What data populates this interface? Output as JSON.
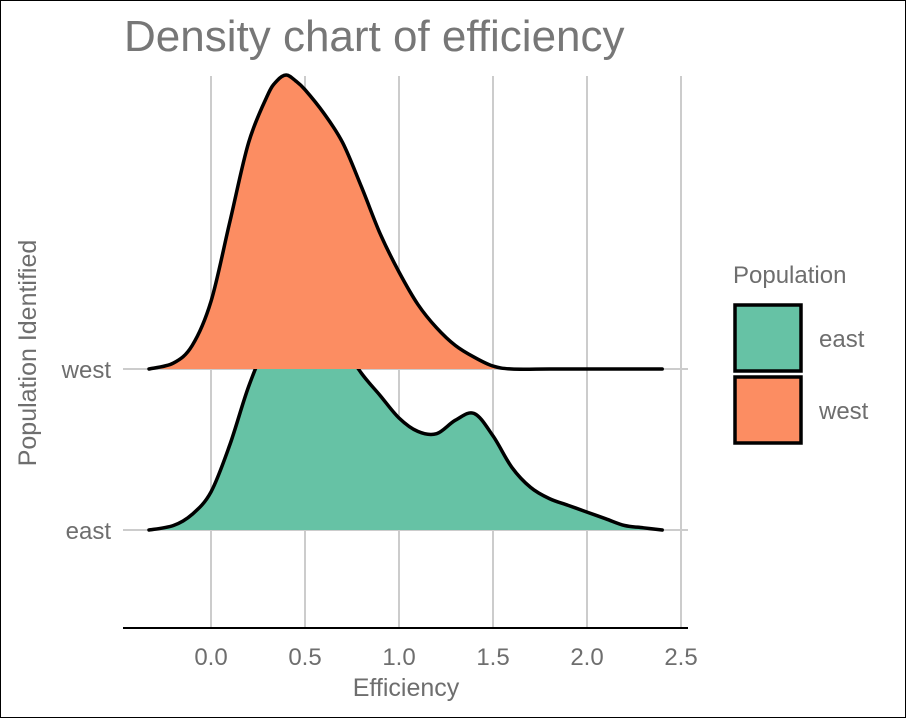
{
  "chart_data": {
    "type": "ridgeline-density",
    "title": "Density chart of efficiency",
    "xlabel": "Efficiency",
    "ylabel": "Population Identified",
    "xlim": [
      -0.35,
      2.45
    ],
    "x_ticks": [
      0.0,
      0.5,
      1.0,
      1.5,
      2.0,
      2.5
    ],
    "x_tick_labels": [
      "0.0",
      "0.5",
      "1.0",
      "1.5",
      "2.0",
      "2.5"
    ],
    "categories": [
      "east",
      "west"
    ],
    "grid": "vertical major gridlines plus horizontal baseline lines at categories",
    "legend": {
      "title": "Population",
      "position": "right",
      "entries": [
        "east",
        "west"
      ]
    },
    "series": [
      {
        "name": "east",
        "color": "#66c2a5",
        "x": [
          -0.33,
          -0.2,
          -0.1,
          0.0,
          0.1,
          0.2,
          0.3,
          0.4,
          0.5,
          0.55,
          0.6,
          0.7,
          0.8,
          0.9,
          1.0,
          1.1,
          1.2,
          1.3,
          1.4,
          1.5,
          1.6,
          1.7,
          1.8,
          1.9,
          2.0,
          2.1,
          2.2,
          2.3,
          2.4
        ],
        "density": [
          0.0,
          0.02,
          0.07,
          0.17,
          0.38,
          0.64,
          0.84,
          0.97,
          1.0,
          1.0,
          0.97,
          0.83,
          0.7,
          0.6,
          0.5,
          0.44,
          0.43,
          0.49,
          0.52,
          0.42,
          0.28,
          0.19,
          0.14,
          0.11,
          0.08,
          0.05,
          0.02,
          0.01,
          0.0
        ]
      },
      {
        "name": "west",
        "color": "#fc8d62",
        "x": [
          -0.33,
          -0.2,
          -0.1,
          0.0,
          0.1,
          0.2,
          0.3,
          0.35,
          0.4,
          0.45,
          0.5,
          0.6,
          0.7,
          0.8,
          0.9,
          1.0,
          1.1,
          1.2,
          1.3,
          1.4,
          1.5,
          1.6,
          1.8,
          2.0,
          2.2,
          2.4
        ],
        "density": [
          0.0,
          0.02,
          0.08,
          0.23,
          0.5,
          0.77,
          0.93,
          0.98,
          1.0,
          0.98,
          0.95,
          0.87,
          0.77,
          0.62,
          0.46,
          0.33,
          0.22,
          0.14,
          0.08,
          0.04,
          0.01,
          0.0,
          0.0,
          0.0,
          0.0,
          0.0
        ]
      }
    ]
  }
}
